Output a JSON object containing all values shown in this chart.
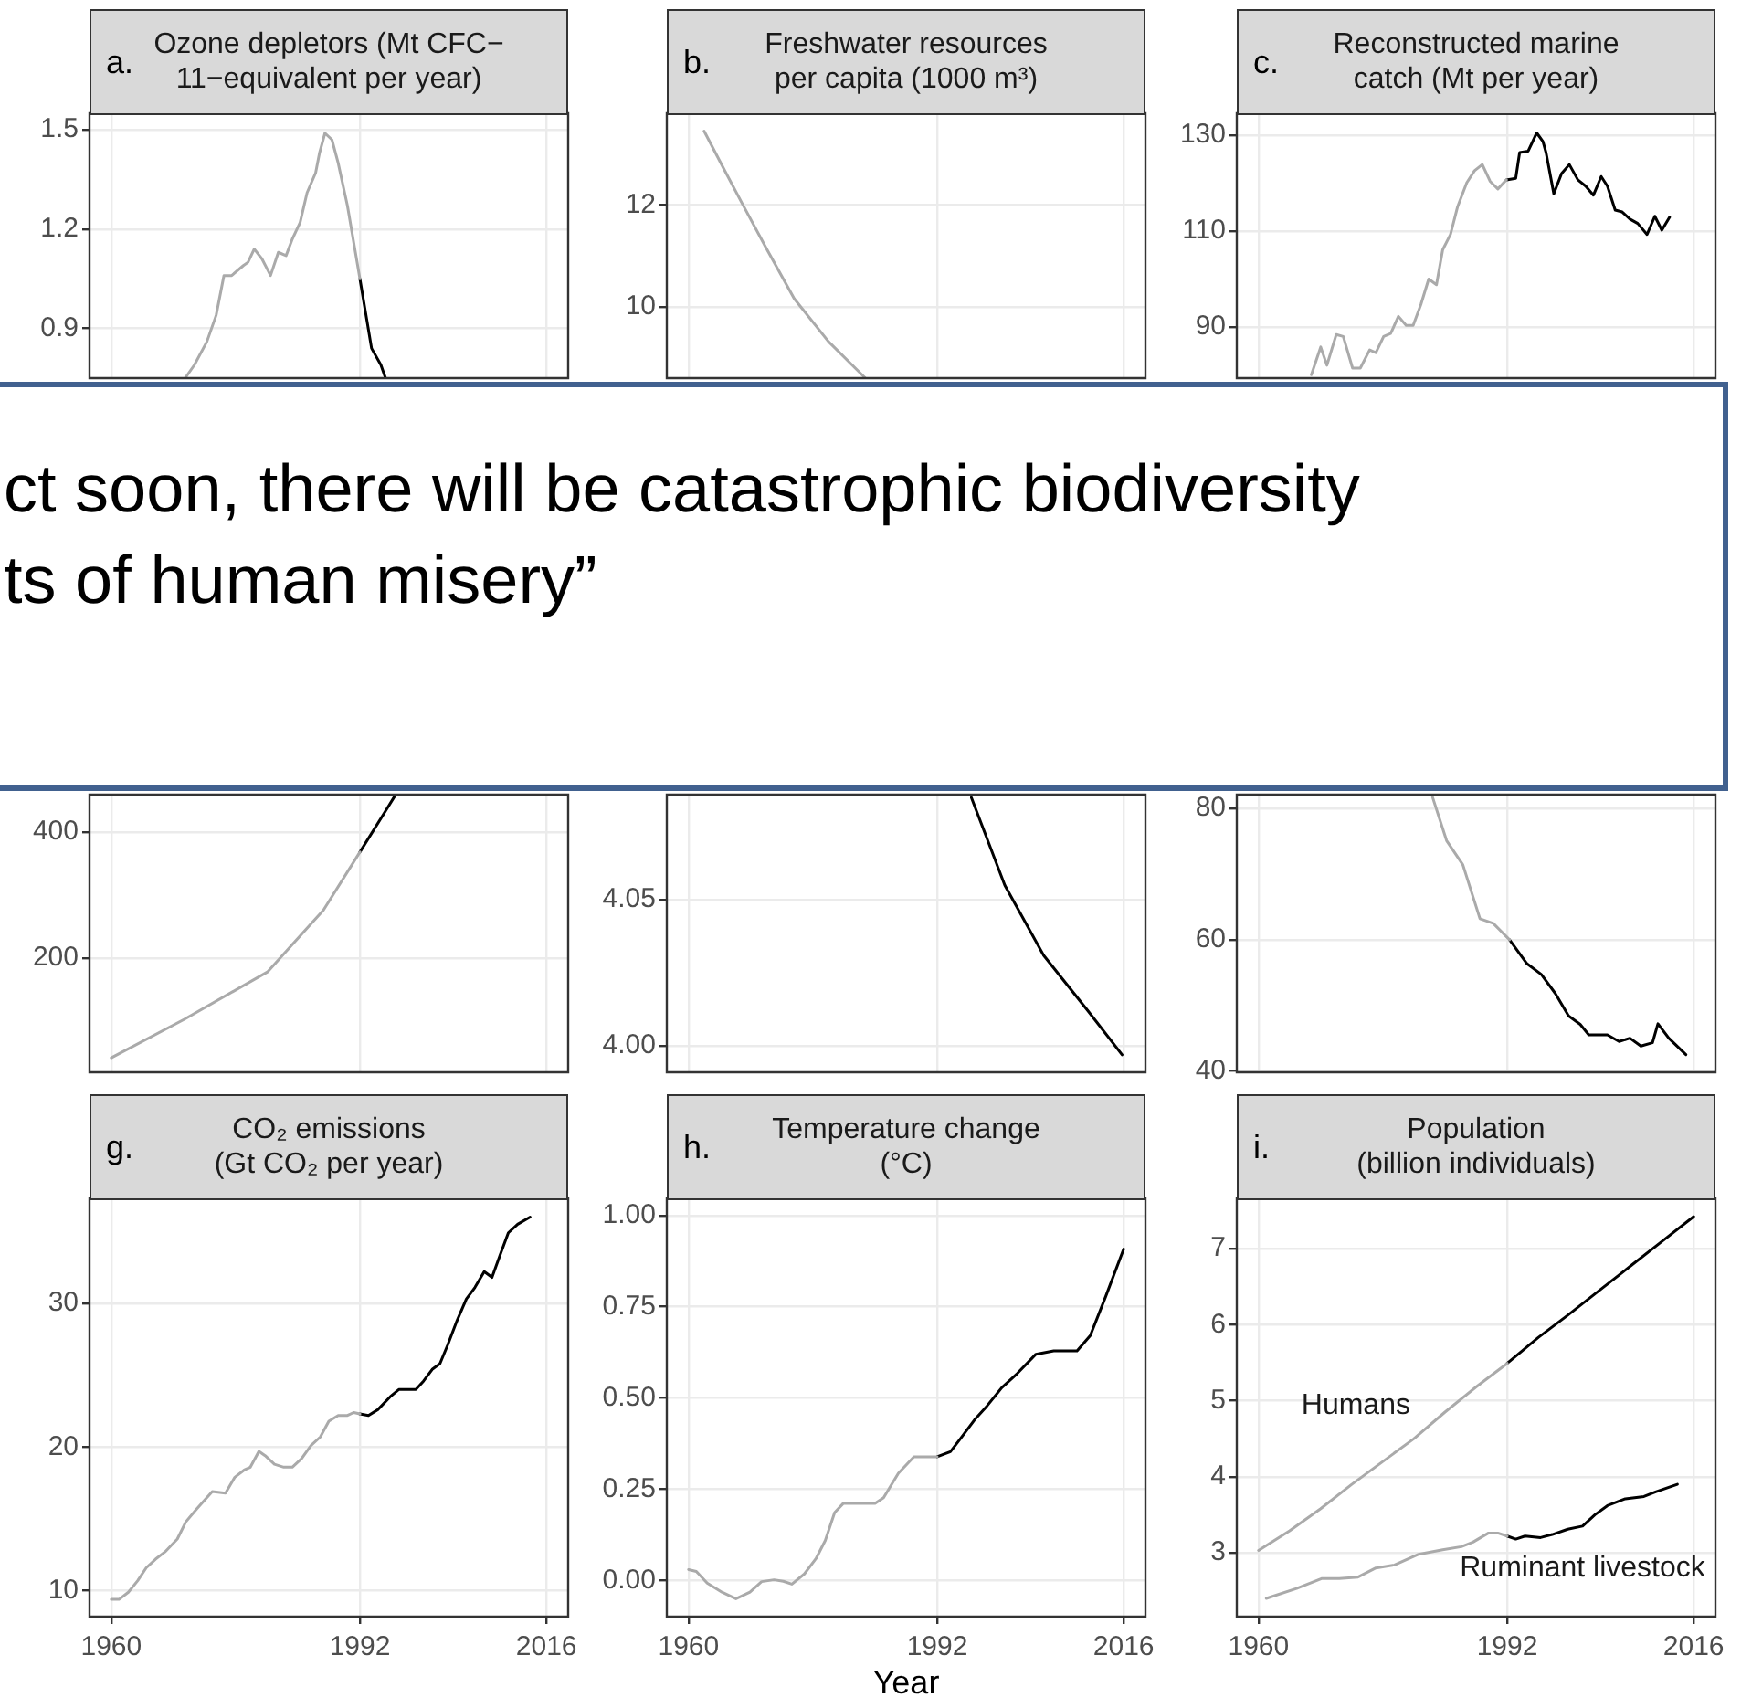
{
  "chart_data": [
    {
      "type": "line",
      "title": "Ozone depletors (Mt CFC−\n11−equivalent per year)",
      "annotations": [
        "a.",
        "ct soon, there will be catastrophic biodiversity\nts of human misery”"
      ],
      "xlim": [
        1957.2,
        2018.8
      ],
      "xticks": [
        1960,
        1992,
        2016
      ],
      "ylim": [
        0.75,
        1.55
      ],
      "yticks": [
        0.9,
        1.2,
        1.5
      ],
      "grid": true,
      "tick_labels": "y",
      "series": [
        {
          "color": "#aaaaaa",
          "x": [
            1969.5,
            1970.7,
            1972.3,
            1973.5,
            1974.5,
            1975.5,
            1977,
            1977.6,
            1978.4,
            1979.4,
            1980.5,
            1981.5,
            1982.5,
            1983.3,
            1984.3,
            1985.2,
            1986.3,
            1986.8,
            1987.5,
            1988.4,
            1989.2,
            1990.4,
            1992
          ],
          "values": [
            0.75,
            0.79,
            0.86,
            0.94,
            1.06,
            1.06,
            1.09,
            1.1,
            1.14,
            1.11,
            1.06,
            1.13,
            1.12,
            1.17,
            1.22,
            1.31,
            1.37,
            1.43,
            1.49,
            1.47,
            1.4,
            1.27,
            1.05
          ]
        },
        {
          "color": "#000000",
          "x": [
            1992,
            1993.5,
            1994.7,
            1995.3
          ],
          "values": [
            1.05,
            0.84,
            0.79,
            0.75
          ]
        }
      ]
    },
    {
      "type": "line",
      "title": "Freshwater resources\nper capita (1000 m³)",
      "annotations": [
        "b."
      ],
      "xlim": [
        1957.2,
        2018.8
      ],
      "xticks": [
        1960,
        1992,
        2016
      ],
      "ylim": [
        8.6,
        13.8
      ],
      "yticks": [
        10,
        12
      ],
      "grid": true,
      "tick_labels": "y",
      "series": [
        {
          "color": "#aaaaaa",
          "x": [
            1962,
            1964.5,
            1967,
            1970,
            1973.6,
            1978,
            1982.7
          ],
          "values": [
            13.45,
            12.72,
            12.0,
            11.15,
            10.16,
            9.32,
            8.61
          ]
        }
      ]
    },
    {
      "type": "line",
      "title": "Reconstructed marine\ncatch (Mt per year)",
      "annotations": [
        "c."
      ],
      "xlim": [
        1957.2,
        2018.8
      ],
      "xticks": [
        1960,
        1992,
        2016
      ],
      "ylim": [
        79.3,
        134.6
      ],
      "yticks": [
        90,
        110,
        130
      ],
      "grid": true,
      "tick_labels": "y",
      "series": [
        {
          "color": "#aaaaaa",
          "x": [
            1966.8,
            1968,
            1968.8,
            1970,
            1970.9,
            1972.1,
            1973.1,
            1974.3,
            1975.1,
            1976.1,
            1977,
            1978,
            1979,
            1979.9,
            1980.9,
            1981.9,
            1982.9,
            1983.7,
            1984.7,
            1985.6,
            1986.8,
            1987.8,
            1988.8,
            1989.8,
            1990.8,
            1991.9
          ],
          "values": [
            80,
            85.8,
            82,
            88.4,
            88,
            81.4,
            81.4,
            85.2,
            84.6,
            88,
            88.6,
            92.2,
            90.3,
            90.3,
            94.7,
            100,
            98.8,
            106.1,
            109.3,
            115,
            120.1,
            122.6,
            123.9,
            120.4,
            118.8,
            120.7
          ]
        },
        {
          "color": "#000000",
          "x": [
            1991.9,
            1993.1,
            1993.6,
            1994.7,
            1995.8,
            1996.6,
            1997,
            1998,
            1999,
            2000,
            2001.1,
            2002.1,
            2003.1,
            2004.1,
            2004.9,
            2005.9,
            2006.8,
            2007.8,
            2008.8,
            2010,
            2011,
            2011.9,
            2012.9
          ],
          "values": [
            120.7,
            121,
            126.4,
            126.7,
            130.5,
            128.7,
            126.4,
            117.8,
            122,
            123.9,
            120.7,
            119.4,
            117.5,
            121.4,
            119.4,
            114.4,
            114,
            112.5,
            111.6,
            109.3,
            113.1,
            110.2,
            112.9
          ]
        }
      ]
    },
    {
      "type": "line",
      "xlim": [
        1957.2,
        2018.8
      ],
      "xticks": [
        1960,
        1992,
        2016
      ],
      "ylim": [
        19,
        459
      ],
      "yticks": [
        200,
        400
      ],
      "grid": true,
      "tick_labels": "y",
      "series": [
        {
          "color": "#aaaaaa",
          "x": [
            1960,
            1969.4,
            1980.1,
            1987.3,
            1992
          ],
          "values": [
            42,
            103,
            178,
            276,
            368
          ]
        },
        {
          "color": "#000000",
          "x": [
            1992,
            1995.6,
            1996.5
          ],
          "values": [
            368,
            439,
            457
          ]
        }
      ]
    },
    {
      "type": "line",
      "xlim": [
        1957.2,
        2018.8
      ],
      "xticks": [
        1960,
        1992,
        2016
      ],
      "ylim": [
        3.991,
        4.086
      ],
      "yticks": [
        {
          "value": 4,
          "label": "4.00"
        },
        4.05
      ],
      "grid": true,
      "tick_labels": "y",
      "series": [
        {
          "color": "#000000",
          "x": [
            1996.4,
            2000.7,
            2005.7,
            2011.4,
            2015.8
          ],
          "values": [
            4.085,
            4.055,
            4.031,
            4.012,
            3.997
          ]
        }
      ]
    },
    {
      "type": "line",
      "xlim": [
        1957.2,
        2018.8
      ],
      "xticks": [
        1960,
        1992,
        2016
      ],
      "ylim": [
        39.8,
        82.1
      ],
      "yticks": [
        40,
        60,
        80
      ],
      "grid": true,
      "tick_labels": "y",
      "series": [
        {
          "color": "#aaaaaa",
          "x": [
            1982.4,
            1984.2,
            1986.3,
            1988.5,
            1990.2,
            1992.3
          ],
          "values": [
            81.7,
            75.1,
            71.4,
            63.2,
            62.5,
            60
          ]
        },
        {
          "color": "#000000",
          "x": [
            1992.3,
            1994.5,
            1996.4,
            1998.2,
            1999.9,
            2001.4,
            2002.5,
            2004.9,
            2006.4,
            2007.8,
            2009.2,
            2010.7,
            2011.4,
            2012.8,
            2015
          ],
          "values": [
            60,
            56.4,
            54.7,
            51.8,
            48.4,
            47.1,
            45.5,
            45.5,
            44.5,
            45,
            43.8,
            44.3,
            47.2,
            45,
            42.5
          ]
        }
      ]
    },
    {
      "type": "line",
      "title": "CO₂ emissions\n(Gt CO₂ per year)",
      "annotations": [
        "g."
      ],
      "xlim": [
        1957.2,
        2018.8
      ],
      "xticks": [
        1960,
        1992,
        2016
      ],
      "ylim": [
        8.2,
        37.3
      ],
      "yticks": [
        10,
        20,
        30
      ],
      "grid": true,
      "series": [
        {
          "color": "#aaaaaa",
          "x": [
            1960,
            1961,
            1962.2,
            1963.4,
            1964.5,
            1965.7,
            1966.9,
            1968.5,
            1969.6,
            1971,
            1972,
            1973,
            1974.7,
            1975.9,
            1977.1,
            1977.9,
            1979,
            1979.8,
            1981,
            1982.2,
            1983.3,
            1984.5,
            1985.7,
            1986.9,
            1988,
            1989.2,
            1990.4,
            1991.2,
            1992
          ],
          "values": [
            9.4,
            9.4,
            9.9,
            10.7,
            11.6,
            12.2,
            12.7,
            13.6,
            14.8,
            15.7,
            16.3,
            16.9,
            16.8,
            17.9,
            18.4,
            18.6,
            19.7,
            19.4,
            18.8,
            18.6,
            18.6,
            19.2,
            20.1,
            20.7,
            21.8,
            22.2,
            22.2,
            22.4,
            22.3
          ]
        },
        {
          "color": "#000000",
          "x": [
            1992,
            1993.1,
            1994.3,
            1995.9,
            1997,
            1998.2,
            1999.2,
            2000.2,
            2001.3,
            2002.3,
            2003.3,
            2004.5,
            2005.7,
            2006.8,
            2008,
            2009,
            2010,
            2011.1,
            2012.3,
            2013.9
          ],
          "values": [
            22.3,
            22.2,
            22.6,
            23.5,
            24,
            24,
            24,
            24.6,
            25.4,
            25.8,
            27.1,
            28.8,
            30.3,
            31.1,
            32.2,
            31.8,
            33.3,
            34.9,
            35.5,
            36
          ]
        }
      ]
    },
    {
      "type": "line",
      "title": "Temperature change\n(°C)",
      "annotations": [
        "h."
      ],
      "xlabel": "Year",
      "xlim": [
        1957.2,
        2018.8
      ],
      "xticks": [
        1960,
        1992,
        2016
      ],
      "ylim": [
        -0.099,
        1.047
      ],
      "yticks": [
        {
          "value": 0,
          "label": "0.00"
        },
        0.25,
        {
          "value": 0.5,
          "label": "0.50"
        },
        0.75,
        {
          "value": 1,
          "label": "1.00"
        }
      ],
      "grid": true,
      "series": [
        {
          "color": "#aaaaaa",
          "x": [
            1960,
            1961,
            1962.4,
            1964.3,
            1966.1,
            1967.9,
            1969.4,
            1971,
            1972.2,
            1973.3,
            1974.9,
            1976.4,
            1977.6,
            1978.8,
            1979.9,
            1981.9,
            1984,
            1985.1,
            1987,
            1989,
            1990.5,
            1992
          ],
          "values": [
            0.03,
            0.025,
            -0.007,
            -0.032,
            -0.05,
            -0.032,
            -0.003,
            0.002,
            -0.002,
            -0.01,
            0.018,
            0.06,
            0.11,
            0.186,
            0.211,
            0.211,
            0.211,
            0.227,
            0.294,
            0.339,
            0.339,
            0.339
          ]
        },
        {
          "color": "#000000",
          "x": [
            1992,
            1993.7,
            1994.9,
            1996.8,
            1998.4,
            2000.3,
            2002.3,
            2004.7,
            2007,
            2010,
            2011.7,
            2013.7,
            2016
          ],
          "values": [
            0.339,
            0.353,
            0.386,
            0.44,
            0.478,
            0.528,
            0.567,
            0.62,
            0.629,
            0.629,
            0.671,
            0.779,
            0.908
          ]
        }
      ]
    },
    {
      "type": "line",
      "title": "Population\n(billion individuals)",
      "annotations": [
        "i."
      ],
      "xlim": [
        1957.2,
        2018.8
      ],
      "xticks": [
        1960,
        1992,
        2016
      ],
      "ylim": [
        2.16,
        7.66
      ],
      "yticks": [
        3,
        4,
        5,
        6,
        7
      ],
      "grid": true,
      "series": [
        {
          "name": "Humans",
          "color": "#aaaaaa",
          "x": [
            1960,
            1964,
            1968,
            1972,
            1976,
            1980,
            1984,
            1988,
            1992
          ],
          "values": [
            3.03,
            3.29,
            3.58,
            3.9,
            4.2,
            4.5,
            4.85,
            5.18,
            5.49
          ]
        },
        {
          "color": "#000000",
          "x": [
            1992,
            1996,
            2000,
            2004,
            2008,
            2012,
            2016
          ],
          "values": [
            5.49,
            5.83,
            6.14,
            6.46,
            6.78,
            7.1,
            7.42
          ]
        },
        {
          "color": "#aaaaaa",
          "x": [
            1961,
            1964.9,
            1968.1,
            1970.4,
            1972.8,
            1975.1,
            1977.5,
            1980.6,
            1983.7,
            1986.1,
            1987.6,
            1989.6,
            1990.8,
            1992
          ],
          "values": [
            2.4,
            2.53,
            2.66,
            2.66,
            2.68,
            2.8,
            2.84,
            2.98,
            3.04,
            3.08,
            3.14,
            3.26,
            3.26,
            3.22
          ]
        },
        {
          "name": "Ruminant livestock",
          "color": "#000000",
          "x": [
            1992,
            1993.1,
            1994.3,
            1996.3,
            1997.8,
            1999.8,
            2001.7,
            2003.3,
            2004.9,
            2007.2,
            2009.6,
            2011.1,
            2013.9
          ],
          "values": [
            3.22,
            3.18,
            3.22,
            3.2,
            3.24,
            3.31,
            3.35,
            3.5,
            3.62,
            3.71,
            3.74,
            3.8,
            3.9
          ]
        }
      ]
    }
  ]
}
